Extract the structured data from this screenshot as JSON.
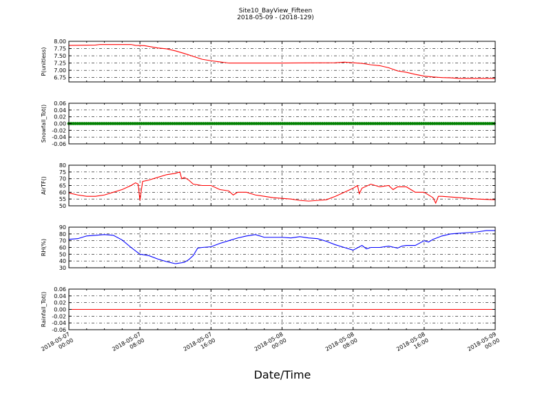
{
  "header": {
    "title": "Site10_BayView_Fifteen",
    "subtitle": "2018-05-09 - (2018-129)"
  },
  "chart_data": {
    "type": "line",
    "xlabel": "Date/Time",
    "x_ticks": [
      {
        "value": 0,
        "line1": "2018-05-07",
        "line2": "00:00"
      },
      {
        "value": 8,
        "line1": "2018-05-07",
        "line2": "08:00"
      },
      {
        "value": 16,
        "line1": "2018-05-07",
        "line2": "16:00"
      },
      {
        "value": 24,
        "line1": "2018-05-08",
        "line2": "00:00"
      },
      {
        "value": 32,
        "line1": "2018-05-08",
        "line2": "08:00"
      },
      {
        "value": 40,
        "line1": "2018-05-08",
        "line2": "16:00"
      },
      {
        "value": 48,
        "line1": "2018-05-09",
        "line2": "00:00"
      }
    ],
    "x_range_hours": [
      0,
      48
    ],
    "grid": true,
    "panels": [
      {
        "id": "pressure",
        "ylabel": "P(unitless)",
        "ylim": [
          6.6,
          8.0
        ],
        "yticks": [
          6.75,
          7.0,
          7.25,
          7.5,
          7.75,
          8.0
        ],
        "tick_format": 2,
        "color": "#ff0000",
        "marker": false,
        "points": [
          [
            0,
            7.86
          ],
          [
            3,
            7.87
          ],
          [
            3.5,
            7.89
          ],
          [
            7,
            7.89
          ],
          [
            7.5,
            7.86
          ],
          [
            8.5,
            7.85
          ],
          [
            10,
            7.77
          ],
          [
            11,
            7.74
          ],
          [
            12,
            7.67
          ],
          [
            13,
            7.58
          ],
          [
            14,
            7.48
          ],
          [
            15,
            7.38
          ],
          [
            16,
            7.33
          ],
          [
            17,
            7.29
          ],
          [
            17.5,
            7.27
          ],
          [
            18,
            7.25
          ],
          [
            24,
            7.25
          ],
          [
            30,
            7.26
          ],
          [
            31,
            7.28
          ],
          [
            32,
            7.26
          ],
          [
            33,
            7.24
          ],
          [
            34,
            7.19
          ],
          [
            35,
            7.16
          ],
          [
            36,
            7.09
          ],
          [
            37,
            6.98
          ],
          [
            38,
            6.93
          ],
          [
            39,
            6.86
          ],
          [
            40,
            6.8
          ],
          [
            41,
            6.77
          ],
          [
            42,
            6.75
          ],
          [
            43,
            6.74
          ],
          [
            44,
            6.72
          ],
          [
            48,
            6.72
          ]
        ]
      },
      {
        "id": "snowfall",
        "ylabel": "Snowfall_Tot()",
        "ylim": [
          -0.06,
          0.06
        ],
        "yticks": [
          -0.06,
          -0.04,
          -0.02,
          0.0,
          0.02,
          0.04,
          0.06
        ],
        "tick_format": 2,
        "color": "#008000",
        "marker": true,
        "points": [
          [
            0,
            0
          ],
          [
            48,
            0
          ]
        ]
      },
      {
        "id": "airtemp",
        "ylabel": "AirTF()",
        "ylim": [
          50,
          80
        ],
        "yticks": [
          50,
          55,
          60,
          65,
          70,
          75,
          80
        ],
        "tick_format": 0,
        "color": "#ff0000",
        "marker": false,
        "points": [
          [
            0,
            59.5
          ],
          [
            1,
            58
          ],
          [
            2,
            57
          ],
          [
            3,
            57
          ],
          [
            4,
            58
          ],
          [
            5,
            60
          ],
          [
            6,
            62
          ],
          [
            7,
            65
          ],
          [
            7.5,
            67
          ],
          [
            7.8,
            66
          ],
          [
            8,
            54
          ],
          [
            8.3,
            68
          ],
          [
            9,
            69
          ],
          [
            10,
            71
          ],
          [
            11,
            73
          ],
          [
            12,
            74
          ],
          [
            12.5,
            75
          ],
          [
            12.7,
            70
          ],
          [
            13,
            71
          ],
          [
            13.5,
            69
          ],
          [
            14,
            66
          ],
          [
            15,
            65
          ],
          [
            16,
            65
          ],
          [
            17,
            62
          ],
          [
            18,
            61
          ],
          [
            18.5,
            58
          ],
          [
            19,
            60
          ],
          [
            20,
            60
          ],
          [
            21,
            58
          ],
          [
            22,
            57
          ],
          [
            23,
            56
          ],
          [
            24,
            55.5
          ],
          [
            25,
            55
          ],
          [
            26,
            54
          ],
          [
            27,
            53.5
          ],
          [
            28,
            54
          ],
          [
            29,
            54.5
          ],
          [
            30,
            57
          ],
          [
            31,
            60
          ],
          [
            32,
            63
          ],
          [
            32.5,
            65
          ],
          [
            32.7,
            59
          ],
          [
            33,
            63
          ],
          [
            34,
            66
          ],
          [
            35,
            64
          ],
          [
            36,
            65
          ],
          [
            36.5,
            62
          ],
          [
            37,
            64
          ],
          [
            38,
            64
          ],
          [
            38.5,
            62
          ],
          [
            39,
            60
          ],
          [
            40,
            60
          ],
          [
            41,
            56
          ],
          [
            41.3,
            52
          ],
          [
            41.6,
            57
          ],
          [
            42,
            57
          ],
          [
            44,
            56
          ],
          [
            46,
            55
          ],
          [
            48,
            54.5
          ]
        ]
      },
      {
        "id": "rh",
        "ylabel": "RH(%)",
        "ylim": [
          30,
          90
        ],
        "yticks": [
          30,
          40,
          50,
          60,
          70,
          80,
          90
        ],
        "tick_format": 0,
        "color": "#0000ff",
        "marker": false,
        "points": [
          [
            0,
            72
          ],
          [
            1,
            73
          ],
          [
            2,
            77
          ],
          [
            3,
            78
          ],
          [
            4,
            79
          ],
          [
            5,
            78
          ],
          [
            6,
            71
          ],
          [
            7,
            60
          ],
          [
            8,
            50
          ],
          [
            9,
            48
          ],
          [
            10,
            43
          ],
          [
            11,
            39
          ],
          [
            12,
            36
          ],
          [
            13,
            38
          ],
          [
            13.5,
            42
          ],
          [
            14,
            48
          ],
          [
            14.5,
            59
          ],
          [
            15,
            60
          ],
          [
            16,
            61
          ],
          [
            17,
            66
          ],
          [
            18,
            70
          ],
          [
            19,
            74
          ],
          [
            20,
            77
          ],
          [
            21,
            79
          ],
          [
            22,
            75
          ],
          [
            23,
            75
          ],
          [
            24,
            75
          ],
          [
            25,
            74
          ],
          [
            26,
            76
          ],
          [
            27,
            74
          ],
          [
            28,
            73
          ],
          [
            29,
            69
          ],
          [
            30,
            64
          ],
          [
            31,
            60
          ],
          [
            32,
            56
          ],
          [
            33,
            63
          ],
          [
            33.5,
            58
          ],
          [
            34,
            60
          ],
          [
            35,
            60
          ],
          [
            36,
            62
          ],
          [
            37,
            59
          ],
          [
            37.5,
            62
          ],
          [
            38,
            63
          ],
          [
            39,
            63
          ],
          [
            40,
            70
          ],
          [
            40.5,
            68
          ],
          [
            41,
            72
          ],
          [
            42,
            77
          ],
          [
            43,
            80
          ],
          [
            44,
            81
          ],
          [
            45,
            82
          ],
          [
            46,
            83
          ],
          [
            47,
            85
          ],
          [
            48,
            85
          ]
        ]
      },
      {
        "id": "rainfall",
        "ylabel": "Rainfall_Tot()",
        "ylim": [
          -0.06,
          0.06
        ],
        "yticks": [
          -0.06,
          -0.04,
          -0.02,
          0.0,
          0.02,
          0.04,
          0.06
        ],
        "tick_format": 2,
        "color": "#ff0000",
        "marker": false,
        "points": [
          [
            0,
            0
          ],
          [
            48,
            0
          ]
        ]
      }
    ]
  }
}
